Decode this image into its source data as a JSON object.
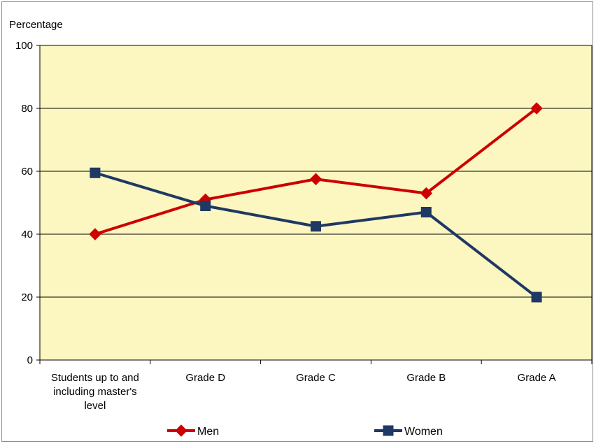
{
  "chart_data": {
    "type": "line",
    "title": "",
    "ylabel": "Percentage",
    "xlabel": "",
    "ylim": [
      0,
      100
    ],
    "yticks": [
      0,
      20,
      40,
      60,
      80,
      100
    ],
    "grid": true,
    "legend_position": "bottom",
    "plot_background": "#fcf7c0",
    "categories": [
      [
        "Students up to and",
        "including master's",
        "level"
      ],
      [
        "Grade D"
      ],
      [
        "Grade C"
      ],
      [
        "Grade B"
      ],
      [
        "Grade A"
      ]
    ],
    "series": [
      {
        "name": "Men",
        "color": "#cc0000",
        "marker": "diamond",
        "values": [
          40,
          51,
          57.5,
          53,
          80
        ]
      },
      {
        "name": "Women",
        "color": "#1f3864",
        "marker": "square",
        "values": [
          59.5,
          49,
          42.5,
          47,
          20
        ]
      }
    ]
  }
}
